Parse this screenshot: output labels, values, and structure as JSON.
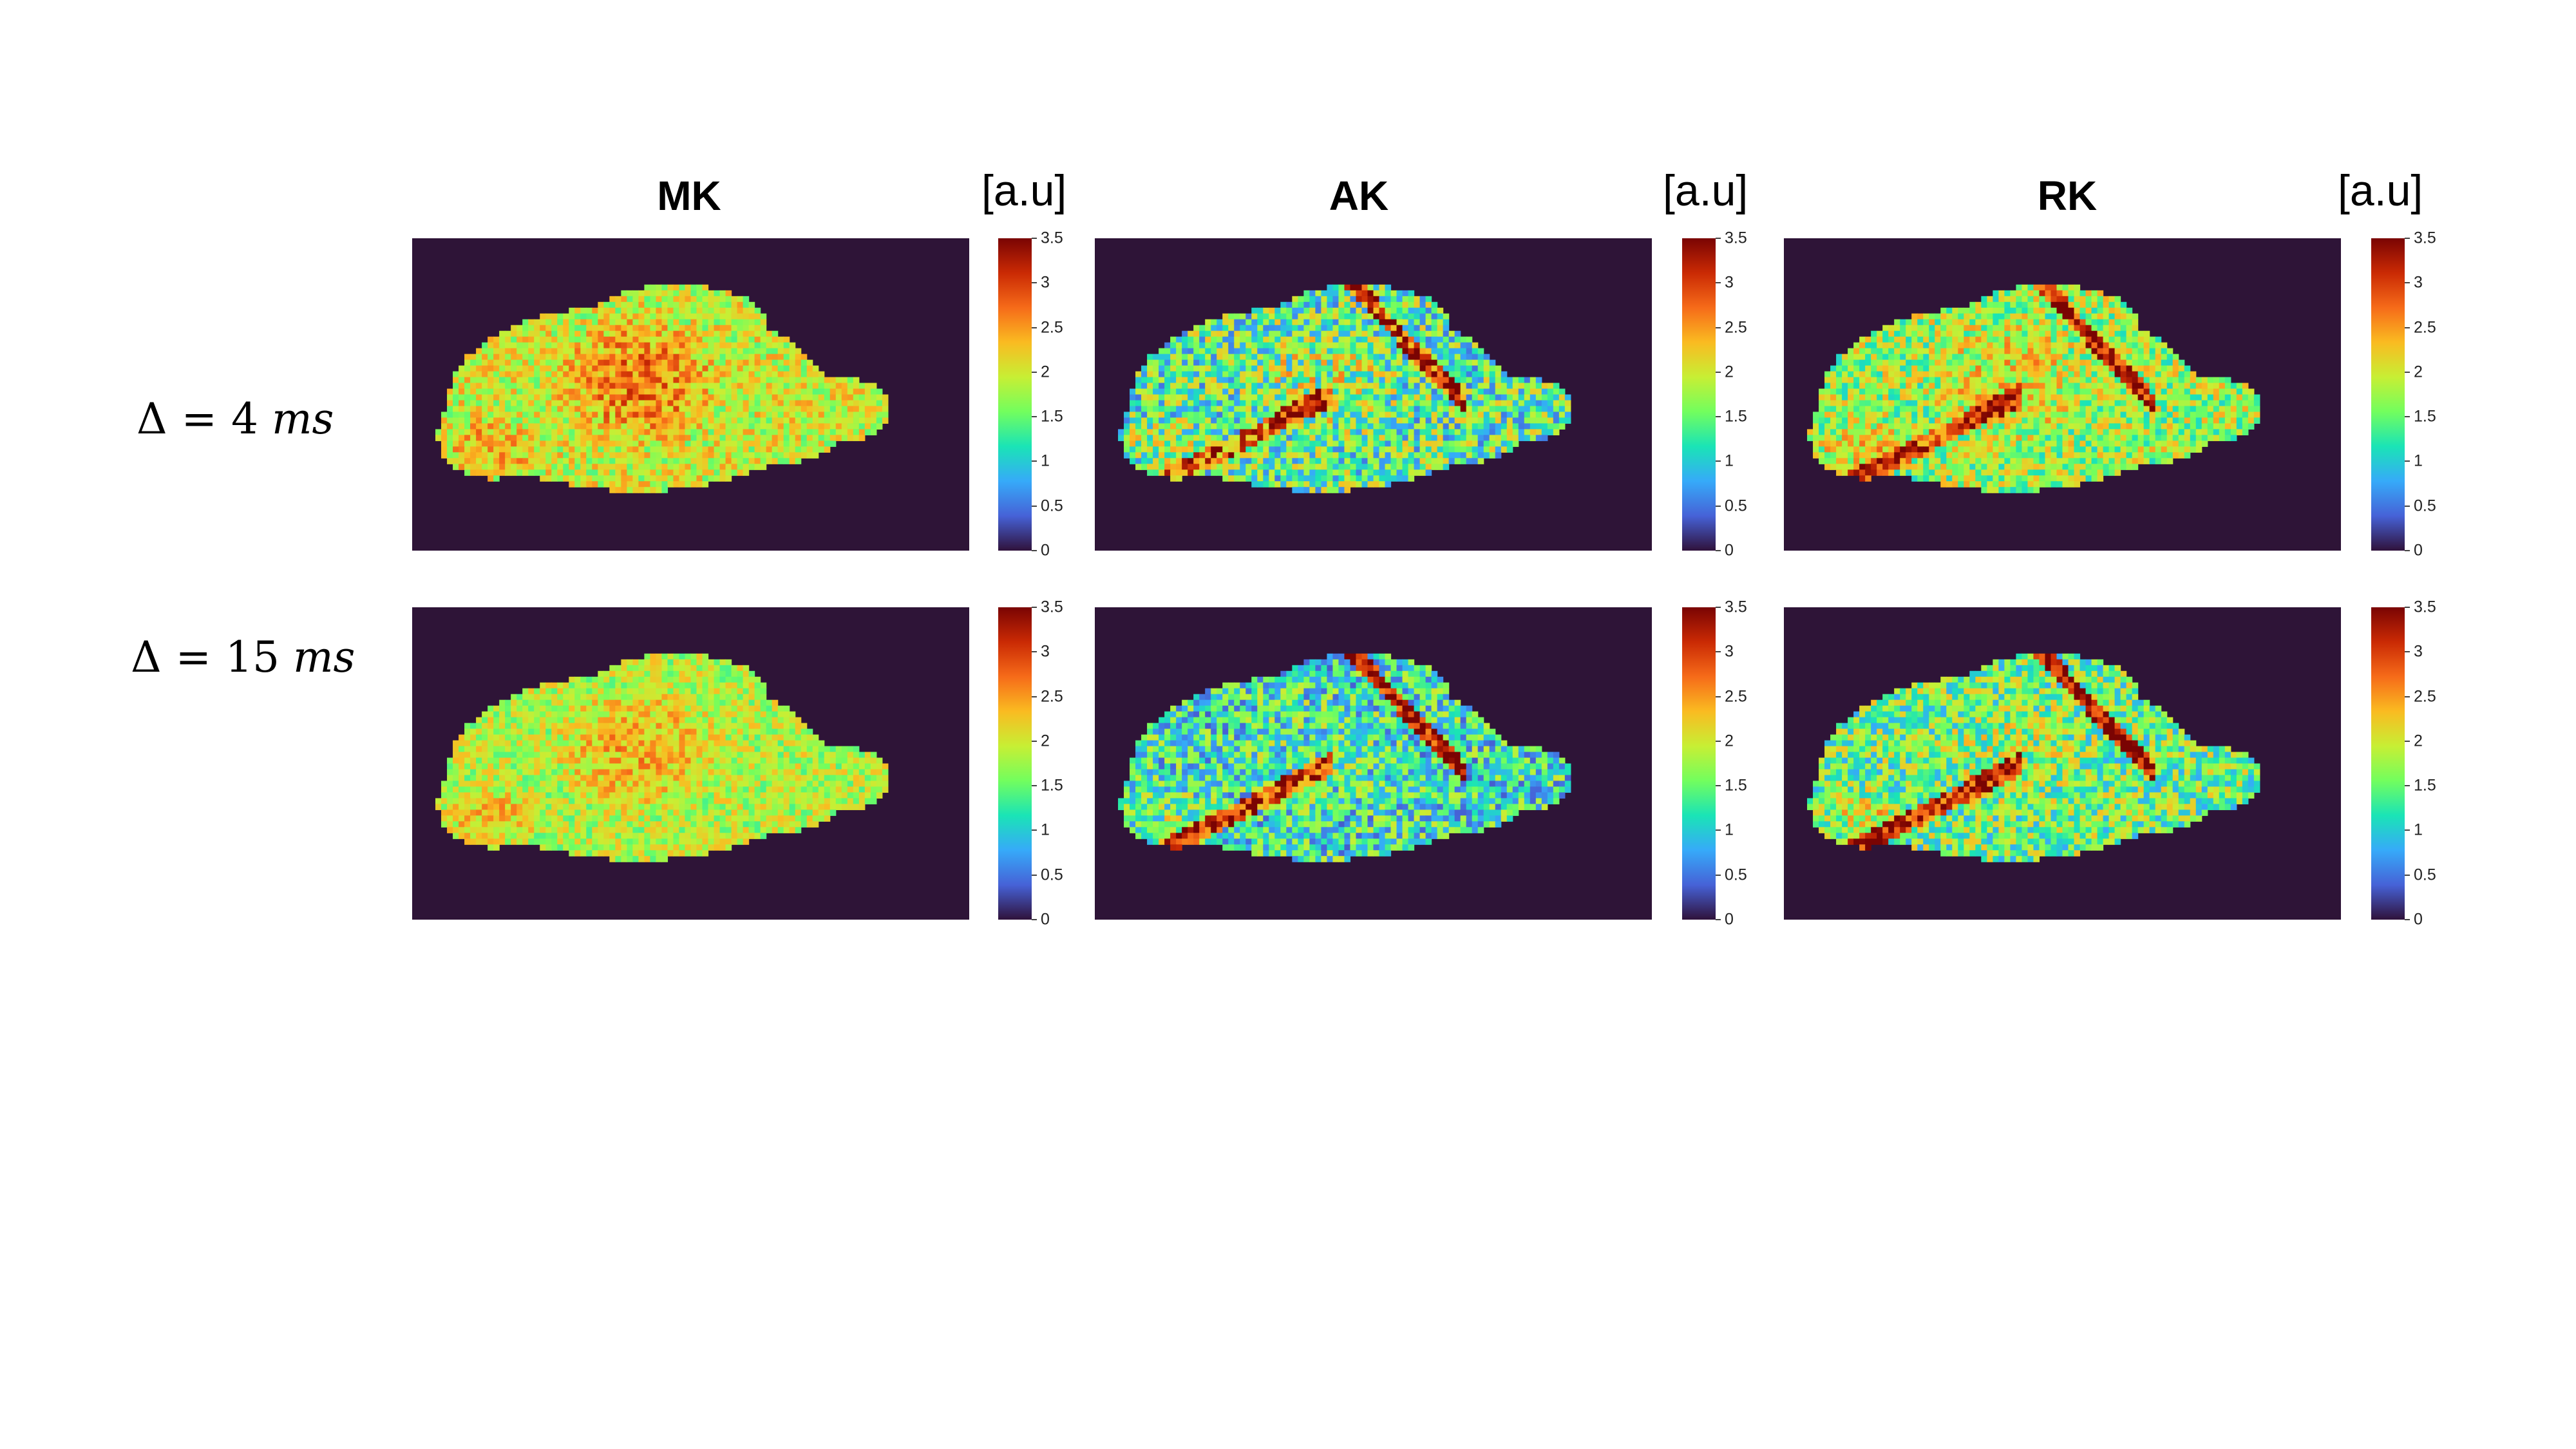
{
  "columns": [
    {
      "title": "MK",
      "unit": "[a.u]"
    },
    {
      "title": "AK",
      "unit": "[a.u]"
    },
    {
      "title": "RK",
      "unit": "[a.u]"
    }
  ],
  "rows": [
    {
      "delta_symbol": "Δ",
      "equals": "=",
      "value": "4",
      "unit": "ms"
    },
    {
      "delta_symbol": "Δ",
      "equals": "=",
      "value": "15",
      "unit": "ms"
    }
  ],
  "colorbar": {
    "ticks": [
      "0",
      "0.5",
      "1",
      "1.5",
      "2",
      "2.5",
      "3",
      "3.5"
    ],
    "range": [
      0,
      3.5
    ],
    "colormap": "turbo"
  },
  "colors": {
    "background_map": "#2e1437",
    "colorbar_stops": [
      "#30123b",
      "#4662d7",
      "#36aaf9",
      "#1ae4b6",
      "#72fe5e",
      "#c7ef34",
      "#fabb21",
      "#f66b19",
      "#ca2a04",
      "#7a0403"
    ]
  },
  "panels": [
    {
      "metric": "MK",
      "delta": "4 ms",
      "character": "mostly green/yellow with orange-red center"
    },
    {
      "metric": "AK",
      "delta": "4 ms",
      "character": "blue/green with red streaks"
    },
    {
      "metric": "RK",
      "delta": "4 ms",
      "character": "green/yellow with red streaks in center"
    },
    {
      "metric": "MK",
      "delta": "15 ms",
      "character": "mostly green with orange center"
    },
    {
      "metric": "AK",
      "delta": "15 ms",
      "character": "blue with dark red streaks"
    },
    {
      "metric": "RK",
      "delta": "15 ms",
      "character": "blue/green with red streaks"
    }
  ]
}
